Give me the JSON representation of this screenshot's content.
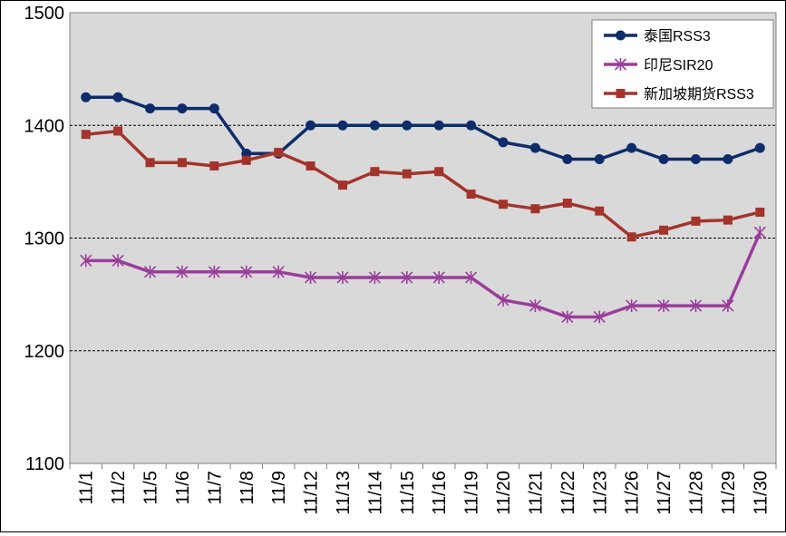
{
  "chart_data": {
    "type": "line",
    "categories": [
      "11/1",
      "11/2",
      "11/5",
      "11/6",
      "11/7",
      "11/8",
      "11/9",
      "11/12",
      "11/13",
      "11/14",
      "11/15",
      "11/16",
      "11/19",
      "11/20",
      "11/21",
      "11/22",
      "11/23",
      "11/26",
      "11/27",
      "11/28",
      "11/29",
      "11/30"
    ],
    "series": [
      {
        "name": "泰国RSS3",
        "color": "#0d2c6b",
        "marker": "circle",
        "values": [
          1425,
          1425,
          1415,
          1415,
          1415,
          1375,
          1375,
          1400,
          1400,
          1400,
          1400,
          1400,
          1400,
          1385,
          1380,
          1370,
          1370,
          1380,
          1370,
          1370,
          1370,
          1380
        ]
      },
      {
        "name": "印尼SIR20",
        "color": "#9b3d9b",
        "marker": "asterisk",
        "values": [
          1280,
          1280,
          1270,
          1270,
          1270,
          1270,
          1270,
          1265,
          1265,
          1265,
          1265,
          1265,
          1265,
          1245,
          1240,
          1230,
          1230,
          1240,
          1240,
          1240,
          1240,
          1305
        ]
      },
      {
        "name": "新加坡期货RSS3",
        "color": "#a3342b",
        "marker": "square",
        "values": [
          1392,
          1395,
          1367,
          1367,
          1364,
          1369,
          1376,
          1364,
          1347,
          1359,
          1357,
          1359,
          1339,
          1330,
          1326,
          1331,
          1324,
          1301,
          1307,
          1315,
          1316,
          1323
        ]
      }
    ],
    "yticks": [
      "1100",
      "1200",
      "1300",
      "1400",
      "1500"
    ],
    "ylim": [
      1100,
      1500
    ],
    "grid": "horizontal dashed",
    "legend_position": "top-right",
    "plot_background": "#d9d9d9"
  }
}
